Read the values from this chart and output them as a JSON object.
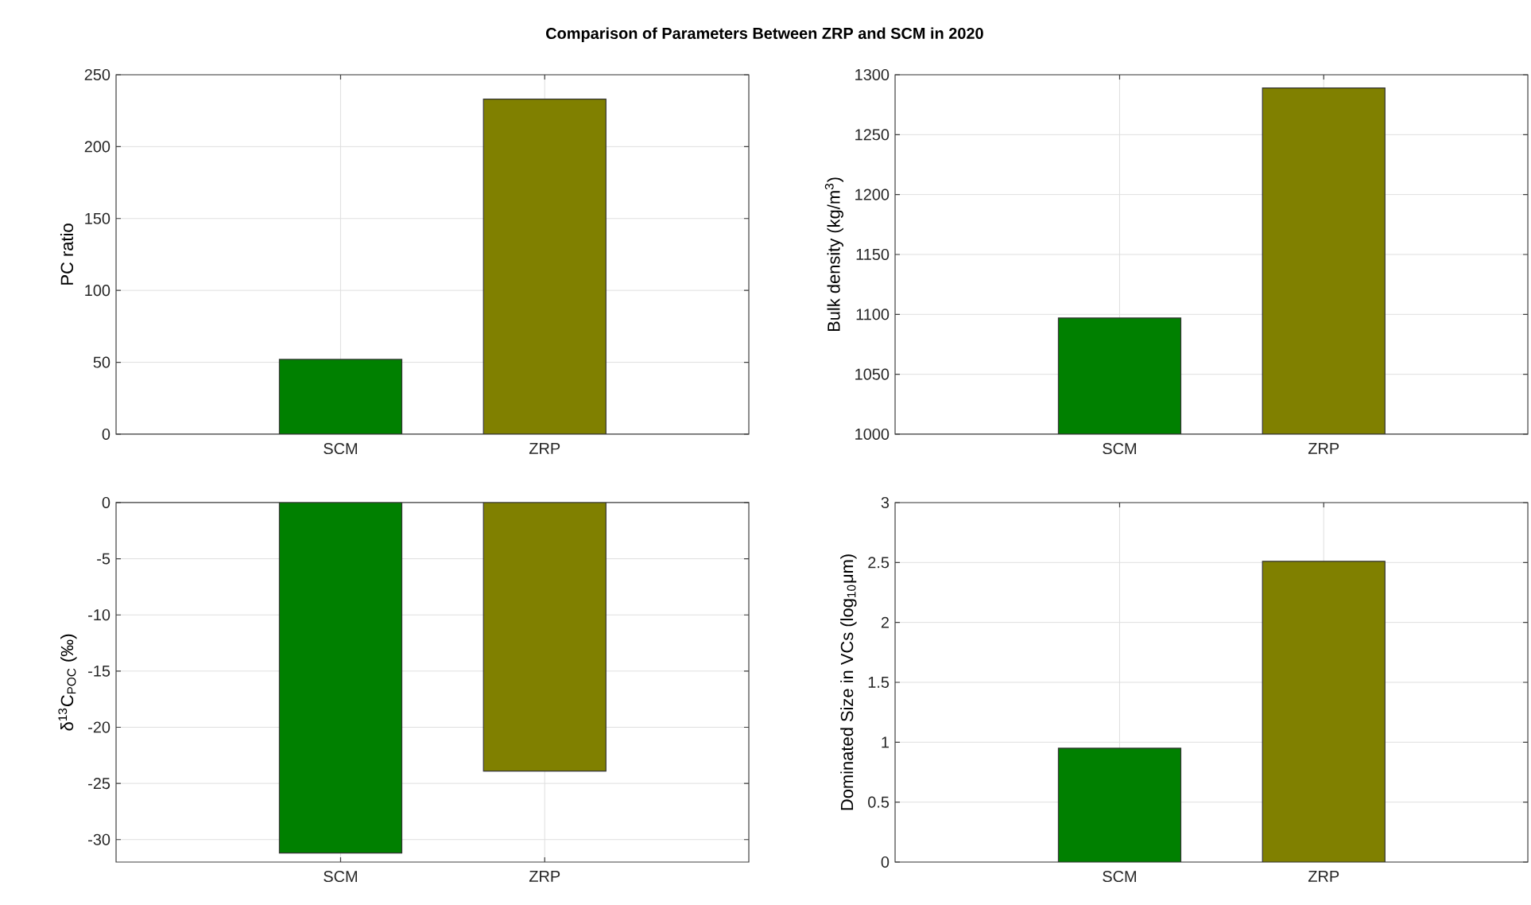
{
  "chart_data": [
    {
      "type": "bar",
      "title": "Comparison of Parameters Between ZRP and SCM in 2020",
      "categories": [
        "SCM",
        "ZRP"
      ],
      "values": [
        52,
        233
      ],
      "colors": [
        "#008000",
        "#808000"
      ],
      "ylabel": "PC ratio",
      "ylim": [
        0,
        250
      ],
      "yticks": [
        0,
        50,
        100,
        150,
        200,
        250
      ],
      "grid": true
    },
    {
      "type": "bar",
      "categories": [
        "SCM",
        "ZRP"
      ],
      "values": [
        1097,
        1289
      ],
      "colors": [
        "#008000",
        "#808000"
      ],
      "ylabel": "Bulk density (kg/m$^{3}$)",
      "ylim": [
        1000,
        1300
      ],
      "yticks": [
        1000,
        1050,
        1100,
        1150,
        1200,
        1250,
        1300
      ],
      "grid": true
    },
    {
      "type": "bar",
      "categories": [
        "SCM",
        "ZRP"
      ],
      "values": [
        -31.2,
        -23.9
      ],
      "colors": [
        "#008000",
        "#808000"
      ],
      "ylabel": "δ$^{13}$C$_{POC}$ (‰)",
      "ylim": [
        -32,
        0
      ],
      "yticks": [
        -30,
        -25,
        -20,
        -15,
        -10,
        -5,
        0
      ],
      "grid": true
    },
    {
      "type": "bar",
      "categories": [
        "SCM",
        "ZRP"
      ],
      "values": [
        0.95,
        2.51
      ],
      "colors": [
        "#008000",
        "#808000"
      ],
      "ylabel": "Dominated Size in VCs (log$_{10}$μm)",
      "ylim": [
        0,
        3
      ],
      "yticks": [
        0,
        0.5,
        1,
        1.5,
        2,
        2.5,
        3
      ],
      "grid": true
    }
  ]
}
